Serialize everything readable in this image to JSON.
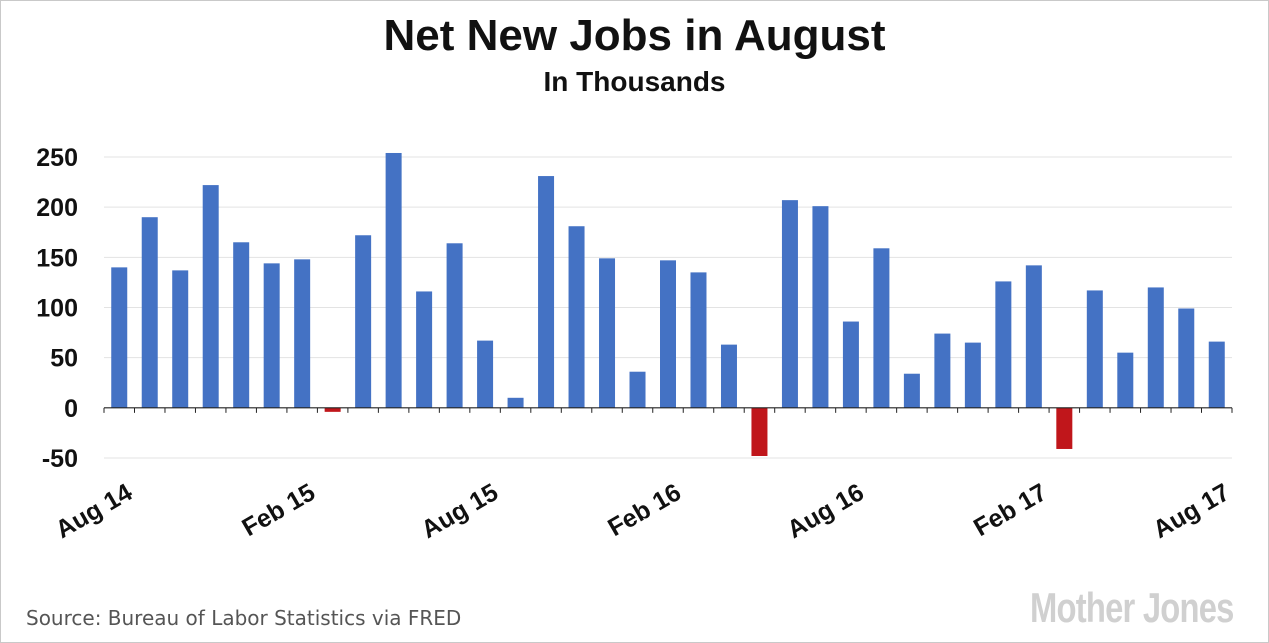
{
  "chart_data": {
    "type": "bar",
    "title": "Net New Jobs in August",
    "subtitle": "In Thousands",
    "xlabel": "",
    "ylabel": "",
    "ylim": [
      -50,
      250
    ],
    "yticks": [
      -50,
      0,
      50,
      100,
      150,
      200,
      250
    ],
    "grid": true,
    "legend": "none",
    "categories": [
      "Aug 14",
      "Sep 14",
      "Oct 14",
      "Nov 14",
      "Dec 14",
      "Jan 15",
      "Feb 15",
      "Mar 15",
      "Apr 15",
      "May 15",
      "Jun 15",
      "Jul 15",
      "Aug 15",
      "Sep 15",
      "Oct 15",
      "Nov 15",
      "Dec 15",
      "Jan 16",
      "Feb 16",
      "Mar 16",
      "Apr 16",
      "May 16",
      "Jun 16",
      "Jul 16",
      "Aug 16",
      "Sep 16",
      "Oct 16",
      "Nov 16",
      "Dec 16",
      "Jan 17",
      "Feb 17",
      "Mar 17",
      "Apr 17",
      "May 17",
      "Jun 17",
      "Jul 17",
      "Aug 17"
    ],
    "tick_labels": [
      {
        "index": 0,
        "label": "Aug 14"
      },
      {
        "index": 6,
        "label": "Feb 15"
      },
      {
        "index": 12,
        "label": "Aug 15"
      },
      {
        "index": 18,
        "label": "Feb 16"
      },
      {
        "index": 24,
        "label": "Aug 16"
      },
      {
        "index": 30,
        "label": "Feb 17"
      },
      {
        "index": 36,
        "label": "Aug 17"
      }
    ],
    "values": [
      140,
      190,
      137,
      222,
      165,
      144,
      148,
      -4,
      172,
      254,
      116,
      164,
      67,
      10,
      231,
      181,
      149,
      36,
      147,
      135,
      63,
      -48,
      207,
      201,
      86,
      159,
      34,
      74,
      65,
      126,
      142,
      -41,
      117,
      55,
      120,
      99,
      66
    ],
    "colors": {
      "positive": "#4472c4",
      "negative": "#c0161b"
    }
  },
  "source": "Source: Bureau of Labor Statistics via FRED",
  "logo_text": "Mother Jones"
}
